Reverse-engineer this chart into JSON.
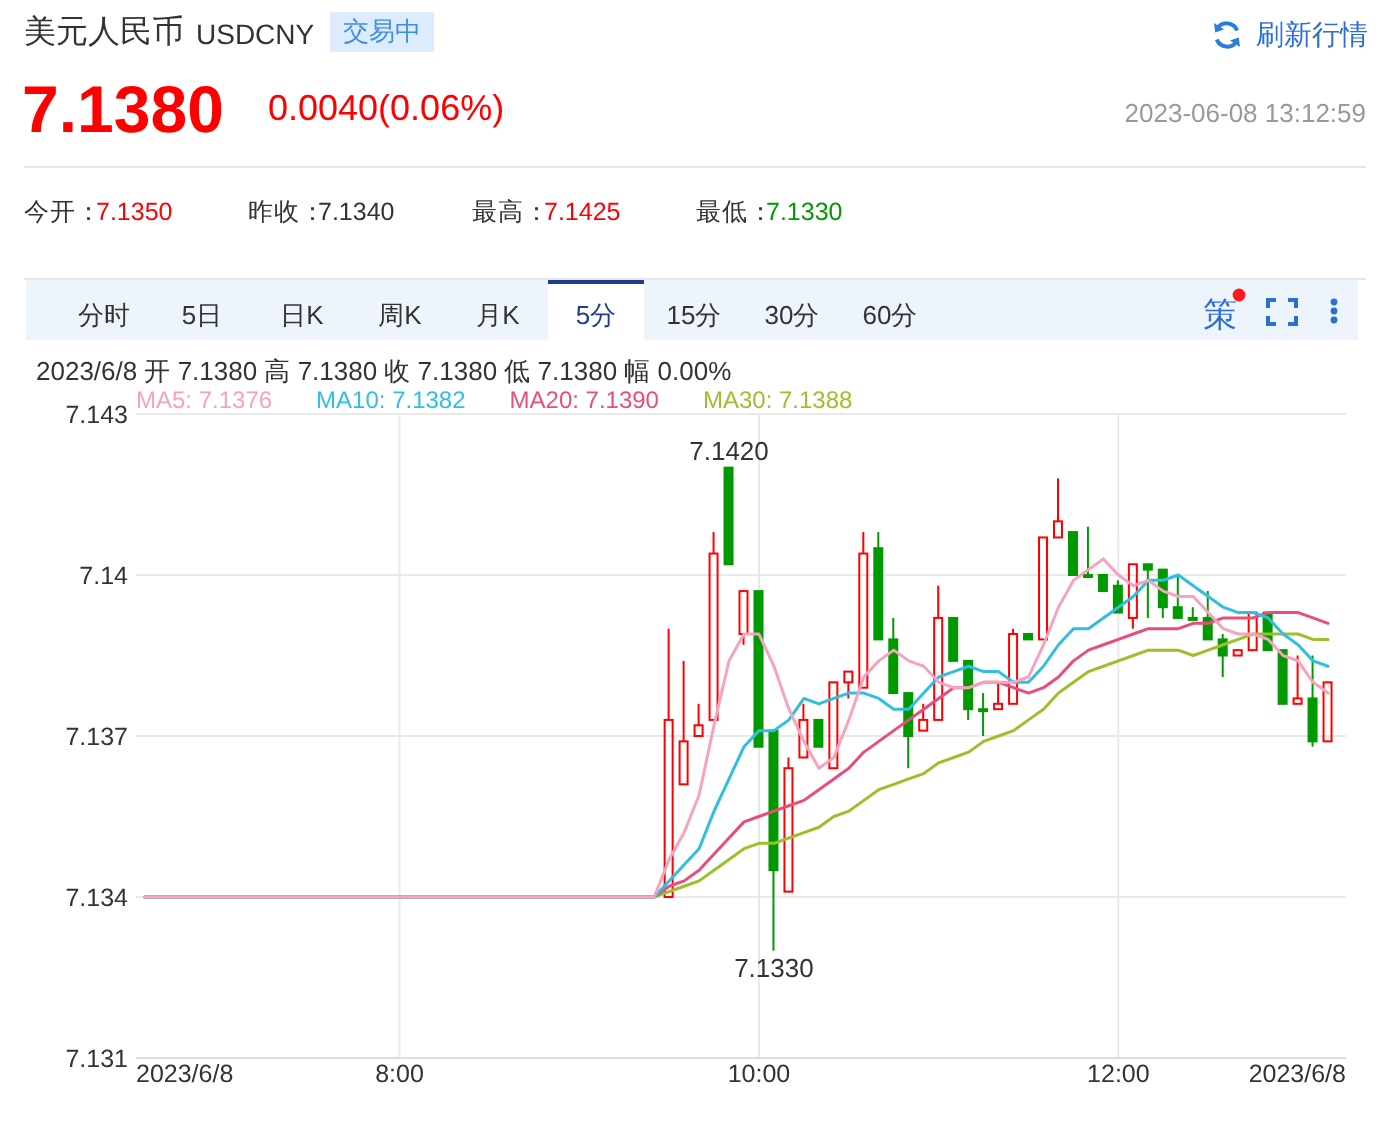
{
  "chart_data": {
    "type": "candlestick",
    "title": "美元人民币",
    "subtitle": "USDCNY",
    "x": [
      "2023-06-08T09:30",
      "2023-06-08T09:35",
      "2023-06-08T09:40",
      "2023-06-08T09:45",
      "2023-06-08T09:50",
      "2023-06-08T09:55",
      "2023-06-08T10:00",
      "2023-06-08T10:05",
      "2023-06-08T10:10",
      "2023-06-08T10:15",
      "2023-06-08T10:20",
      "2023-06-08T10:25",
      "2023-06-08T10:30",
      "2023-06-08T10:35",
      "2023-06-08T10:40",
      "2023-06-08T10:45",
      "2023-06-08T10:50",
      "2023-06-08T10:55",
      "2023-06-08T11:00",
      "2023-06-08T11:05",
      "2023-06-08T11:10",
      "2023-06-08T11:15",
      "2023-06-08T11:20",
      "2023-06-08T11:25",
      "2023-06-08T11:30",
      "2023-06-08T11:35",
      "2023-06-08T11:40",
      "2023-06-08T11:45",
      "2023-06-08T11:50",
      "2023-06-08T11:55",
      "2023-06-08T12:00",
      "2023-06-08T12:05",
      "2023-06-08T12:10",
      "2023-06-08T12:15",
      "2023-06-08T12:20",
      "2023-06-08T12:25",
      "2023-06-08T12:30",
      "2023-06-08T12:35",
      "2023-06-08T12:40",
      "2023-06-08T12:45",
      "2023-06-08T12:50",
      "2023-06-08T12:55",
      "2023-06-08T13:00",
      "2023-06-08T13:05",
      "2023-06-08T13:10"
    ],
    "ohlc": [
      [
        7.134,
        7.139,
        7.134,
        7.1373
      ],
      [
        7.1361,
        7.1384,
        7.1361,
        7.1369
      ],
      [
        7.137,
        7.1376,
        7.137,
        7.1372
      ],
      [
        7.1373,
        7.1408,
        7.1373,
        7.1404
      ],
      [
        7.142,
        7.142,
        7.1402,
        7.1402
      ],
      [
        7.1389,
        7.1397,
        7.1387,
        7.1397
      ],
      [
        7.1397,
        7.1397,
        7.1368,
        7.1368
      ],
      [
        7.1371,
        7.1371,
        7.133,
        7.1345
      ],
      [
        7.1341,
        7.1366,
        7.1341,
        7.1364
      ],
      [
        7.1366,
        7.1376,
        7.1366,
        7.1373
      ],
      [
        7.1373,
        7.1373,
        7.1368,
        7.1368
      ],
      [
        7.1364,
        7.138,
        7.1364,
        7.138
      ],
      [
        7.138,
        7.1382,
        7.1377,
        7.1382
      ],
      [
        7.1379,
        7.1408,
        7.1379,
        7.1404
      ],
      [
        7.1405,
        7.1408,
        7.1388,
        7.1388
      ],
      [
        7.1388,
        7.1392,
        7.1378,
        7.1378
      ],
      [
        7.1378,
        7.1378,
        7.1364,
        7.137
      ],
      [
        7.1371,
        7.1376,
        7.1371,
        7.1373
      ],
      [
        7.1373,
        7.1398,
        7.1373,
        7.1392
      ],
      [
        7.1392,
        7.1392,
        7.1384,
        7.1384
      ],
      [
        7.1384,
        7.1384,
        7.1373,
        7.1375
      ],
      [
        7.1375,
        7.1378,
        7.137,
        7.1375
      ],
      [
        7.1375,
        7.138,
        7.1375,
        7.1376
      ],
      [
        7.1376,
        7.139,
        7.1376,
        7.1389
      ],
      [
        7.1389,
        7.1389,
        7.1388,
        7.1388
      ],
      [
        7.1388,
        7.1407,
        7.1388,
        7.1407
      ],
      [
        7.1407,
        7.1418,
        7.1407,
        7.141
      ],
      [
        7.1408,
        7.1408,
        7.14,
        7.14
      ],
      [
        7.14,
        7.1409,
        7.14,
        7.14
      ],
      [
        7.14,
        7.14,
        7.1397,
        7.1397
      ],
      [
        7.1398,
        7.1399,
        7.1393,
        7.1393
      ],
      [
        7.1392,
        7.1402,
        7.139,
        7.1402
      ],
      [
        7.1402,
        7.1402,
        7.1392,
        7.1401
      ],
      [
        7.1401,
        7.1401,
        7.1392,
        7.1394
      ],
      [
        7.1394,
        7.14,
        7.1392,
        7.1392
      ],
      [
        7.1392,
        7.1394,
        7.1392,
        7.1392
      ],
      [
        7.1392,
        7.1397,
        7.1388,
        7.1388
      ],
      [
        7.1388,
        7.1389,
        7.1381,
        7.1385
      ],
      [
        7.1385,
        7.1386,
        7.1385,
        7.1386
      ],
      [
        7.1386,
        7.1393,
        7.1386,
        7.1393
      ],
      [
        7.1393,
        7.1393,
        7.1386,
        7.1386
      ],
      [
        7.1386,
        7.1386,
        7.1376,
        7.1376
      ],
      [
        7.1376,
        7.1385,
        7.1376,
        7.1377
      ],
      [
        7.1377,
        7.1385,
        7.1368,
        7.1369
      ],
      [
        7.1369,
        7.138,
        7.1369,
        7.138
      ]
    ],
    "colors": [
      "#ff0000",
      "#ff0000",
      "#ff0000",
      "#ff0000",
      "#009a00",
      "#ff0000",
      "#009a00",
      "#009a00",
      "#ff0000",
      "#ff0000",
      "#009a00",
      "#ff0000",
      "#ff0000",
      "#ff0000",
      "#009a00",
      "#009a00",
      "#009a00",
      "#ff0000",
      "#ff0000",
      "#009a00",
      "#009a00",
      "#009a00",
      "#ff0000",
      "#ff0000",
      "#009a00",
      "#ff0000",
      "#ff0000",
      "#009a00",
      "#009a00",
      "#009a00",
      "#009a00",
      "#ff0000",
      "#009a00",
      "#009a00",
      "#009a00",
      "#009a00",
      "#009a00",
      "#009a00",
      "#ff0000",
      "#ff0000",
      "#009a00",
      "#009a00",
      "#ff0000",
      "#009a00",
      "#ff0000"
    ],
    "series": [
      {
        "name": "MA5: 7.1376",
        "type": "line",
        "color": "#f5a3bf",
        "x": [
          "2023-06-08T06:35",
          "2023-06-08T09:25",
          "2023-06-08T09:30",
          "2023-06-08T09:35",
          "2023-06-08T09:40",
          "2023-06-08T09:45",
          "2023-06-08T09:50",
          "2023-06-08T09:55",
          "2023-06-08T10:00",
          "2023-06-08T10:05",
          "2023-06-08T10:10",
          "2023-06-08T10:15",
          "2023-06-08T10:20",
          "2023-06-08T10:25",
          "2023-06-08T10:30",
          "2023-06-08T10:35",
          "2023-06-08T10:40",
          "2023-06-08T10:45",
          "2023-06-08T10:50",
          "2023-06-08T10:55",
          "2023-06-08T11:00",
          "2023-06-08T11:05",
          "2023-06-08T11:10",
          "2023-06-08T11:15",
          "2023-06-08T11:20",
          "2023-06-08T11:25",
          "2023-06-08T11:30",
          "2023-06-08T11:35",
          "2023-06-08T11:40",
          "2023-06-08T11:45",
          "2023-06-08T11:50",
          "2023-06-08T11:55",
          "2023-06-08T12:00",
          "2023-06-08T12:05",
          "2023-06-08T12:10",
          "2023-06-08T12:15",
          "2023-06-08T12:20",
          "2023-06-08T12:25",
          "2023-06-08T12:30",
          "2023-06-08T12:35",
          "2023-06-08T12:40",
          "2023-06-08T12:45",
          "2023-06-08T12:50",
          "2023-06-08T12:55",
          "2023-06-08T13:00",
          "2023-06-08T13:05",
          "2023-06-08T13:10"
        ],
        "values": [
          7.134,
          7.134,
          7.1347,
          7.1352,
          7.1359,
          7.1372,
          7.1384,
          7.1389,
          7.1389,
          7.1383,
          7.1375,
          7.1369,
          7.1364,
          7.1366,
          7.1373,
          7.1381,
          7.1384,
          7.1386,
          7.1384,
          7.1383,
          7.138,
          7.1379,
          7.1379,
          7.138,
          7.138,
          7.138,
          7.1381,
          7.1387,
          7.1394,
          7.1399,
          7.1401,
          7.1403,
          7.14,
          7.1398,
          7.1399,
          7.1397,
          7.1396,
          7.1396,
          7.1393,
          7.139,
          7.1389,
          7.1389,
          7.1388,
          7.1385,
          7.1384,
          7.138,
          7.1378
        ]
      },
      {
        "name": "MA10: 7.1382",
        "type": "line",
        "color": "#30bfe0",
        "x": [
          "2023-06-08T06:35",
          "2023-06-08T09:25",
          "2023-06-08T09:30",
          "2023-06-08T09:35",
          "2023-06-08T09:40",
          "2023-06-08T09:45",
          "2023-06-08T09:50",
          "2023-06-08T09:55",
          "2023-06-08T10:00",
          "2023-06-08T10:05",
          "2023-06-08T10:10",
          "2023-06-08T10:15",
          "2023-06-08T10:20",
          "2023-06-08T10:25",
          "2023-06-08T10:30",
          "2023-06-08T10:35",
          "2023-06-08T10:40",
          "2023-06-08T10:45",
          "2023-06-08T10:50",
          "2023-06-08T10:55",
          "2023-06-08T11:00",
          "2023-06-08T11:05",
          "2023-06-08T11:10",
          "2023-06-08T11:15",
          "2023-06-08T11:20",
          "2023-06-08T11:25",
          "2023-06-08T11:30",
          "2023-06-08T11:35",
          "2023-06-08T11:40",
          "2023-06-08T11:45",
          "2023-06-08T11:50",
          "2023-06-08T11:55",
          "2023-06-08T12:00",
          "2023-06-08T12:05",
          "2023-06-08T12:10",
          "2023-06-08T12:15",
          "2023-06-08T12:20",
          "2023-06-08T12:25",
          "2023-06-08T12:30",
          "2023-06-08T12:35",
          "2023-06-08T12:40",
          "2023-06-08T12:45",
          "2023-06-08T12:50",
          "2023-06-08T12:55",
          "2023-06-08T13:00",
          "2023-06-08T13:05",
          "2023-06-08T13:10"
        ],
        "values": [
          7.134,
          7.134,
          7.1343,
          7.1346,
          7.1349,
          7.1356,
          7.1362,
          7.1368,
          7.1371,
          7.1371,
          7.1373,
          7.1377,
          7.1376,
          7.1377,
          7.1378,
          7.1378,
          7.1377,
          7.1375,
          7.1375,
          7.1378,
          7.1381,
          7.1382,
          7.1383,
          7.1382,
          7.1382,
          7.138,
          7.138,
          7.1383,
          7.1387,
          7.139,
          7.139,
          7.1392,
          7.1394,
          7.1396,
          7.1399,
          7.1399,
          7.14,
          7.1398,
          7.1396,
          7.1394,
          7.1393,
          7.1393,
          7.1392,
          7.1389,
          7.1387,
          7.1384,
          7.1383
        ]
      },
      {
        "name": "MA20: 7.1390",
        "type": "line",
        "color": "#e94c7e",
        "x": [
          "2023-06-08T06:35",
          "2023-06-08T09:25",
          "2023-06-08T09:30",
          "2023-06-08T09:35",
          "2023-06-08T09:40",
          "2023-06-08T09:45",
          "2023-06-08T09:50",
          "2023-06-08T09:55",
          "2023-06-08T10:00",
          "2023-06-08T10:05",
          "2023-06-08T10:10",
          "2023-06-08T10:15",
          "2023-06-08T10:20",
          "2023-06-08T10:25",
          "2023-06-08T10:30",
          "2023-06-08T10:35",
          "2023-06-08T10:40",
          "2023-06-08T10:45",
          "2023-06-08T10:50",
          "2023-06-08T10:55",
          "2023-06-08T11:00",
          "2023-06-08T11:05",
          "2023-06-08T11:10",
          "2023-06-08T11:15",
          "2023-06-08T11:20",
          "2023-06-08T11:25",
          "2023-06-08T11:30",
          "2023-06-08T11:35",
          "2023-06-08T11:40",
          "2023-06-08T11:45",
          "2023-06-08T11:50",
          "2023-06-08T11:55",
          "2023-06-08T12:00",
          "2023-06-08T12:05",
          "2023-06-08T12:10",
          "2023-06-08T12:15",
          "2023-06-08T12:20",
          "2023-06-08T12:25",
          "2023-06-08T12:30",
          "2023-06-08T12:35",
          "2023-06-08T12:40",
          "2023-06-08T12:45",
          "2023-06-08T12:50",
          "2023-06-08T12:55",
          "2023-06-08T13:00",
          "2023-06-08T13:05",
          "2023-06-08T13:10"
        ],
        "values": [
          7.134,
          7.134,
          7.1342,
          7.1343,
          7.1345,
          7.1348,
          7.1351,
          7.1354,
          7.1355,
          7.1356,
          7.1357,
          7.1358,
          7.136,
          7.1362,
          7.1364,
          7.1367,
          7.1369,
          7.1371,
          7.1373,
          7.1375,
          7.1377,
          7.1379,
          7.1379,
          7.138,
          7.138,
          7.1379,
          7.1378,
          7.1379,
          7.1381,
          7.1384,
          7.1386,
          7.1387,
          7.1388,
          7.1389,
          7.139,
          7.139,
          7.139,
          7.1391,
          7.1391,
          7.1392,
          7.1392,
          7.1392,
          7.1393,
          7.1393,
          7.1393,
          7.1392,
          7.1391
        ]
      },
      {
        "name": "MA30: 7.1388",
        "type": "line",
        "color": "#9cc02c",
        "x": [
          "2023-06-08T06:35",
          "2023-06-08T09:25",
          "2023-06-08T09:30",
          "2023-06-08T09:35",
          "2023-06-08T09:40",
          "2023-06-08T09:45",
          "2023-06-08T09:50",
          "2023-06-08T09:55",
          "2023-06-08T10:00",
          "2023-06-08T10:05",
          "2023-06-08T10:10",
          "2023-06-08T10:15",
          "2023-06-08T10:20",
          "2023-06-08T10:25",
          "2023-06-08T10:30",
          "2023-06-08T10:35",
          "2023-06-08T10:40",
          "2023-06-08T10:45",
          "2023-06-08T10:50",
          "2023-06-08T10:55",
          "2023-06-08T11:00",
          "2023-06-08T11:05",
          "2023-06-08T11:10",
          "2023-06-08T11:15",
          "2023-06-08T11:20",
          "2023-06-08T11:25",
          "2023-06-08T11:30",
          "2023-06-08T11:35",
          "2023-06-08T11:40",
          "2023-06-08T11:45",
          "2023-06-08T11:50",
          "2023-06-08T11:55",
          "2023-06-08T12:00",
          "2023-06-08T12:05",
          "2023-06-08T12:10",
          "2023-06-08T12:15",
          "2023-06-08T12:20",
          "2023-06-08T12:25",
          "2023-06-08T12:30",
          "2023-06-08T12:35",
          "2023-06-08T12:40",
          "2023-06-08T12:45",
          "2023-06-08T12:50",
          "2023-06-08T12:55",
          "2023-06-08T13:00",
          "2023-06-08T13:05",
          "2023-06-08T13:10"
        ],
        "values": [
          7.134,
          7.134,
          7.1341,
          7.1342,
          7.1343,
          7.1345,
          7.1347,
          7.1349,
          7.135,
          7.135,
          7.1351,
          7.1352,
          7.1353,
          7.1355,
          7.1356,
          7.1358,
          7.136,
          7.1361,
          7.1362,
          7.1363,
          7.1365,
          7.1366,
          7.1367,
          7.1369,
          7.137,
          7.1371,
          7.1373,
          7.1375,
          7.1378,
          7.138,
          7.1382,
          7.1383,
          7.1384,
          7.1385,
          7.1386,
          7.1386,
          7.1386,
          7.1385,
          7.1386,
          7.1387,
          7.1388,
          7.1389,
          7.1389,
          7.1389,
          7.1389,
          7.1388,
          7.1388
        ]
      }
    ],
    "xlim": [
      "2023-06-08T06:32",
      "2023-06-08T13:16"
    ],
    "xticks": [
      {
        "value": "2023-06-08T06:32",
        "label": "2023/6/8"
      },
      {
        "value": "2023-06-08T08:00",
        "label": "8:00"
      },
      {
        "value": "2023-06-08T10:00",
        "label": "10:00"
      },
      {
        "value": "2023-06-08T12:00",
        "label": "12:00"
      },
      {
        "value": "2023-06-08T13:16",
        "label": "2023/6/8"
      }
    ],
    "ylim": [
      7.131,
      7.143
    ],
    "yticks": [
      7.131,
      7.134,
      7.137,
      7.14,
      7.143
    ],
    "grid": true,
    "legend": "top left",
    "annotations": [
      "交易中",
      "刷新行情",
      "7.1380",
      "0.0040(0.06%)",
      "2023-06-08 13:12:59",
      "今开：",
      "7.1350",
      "昨收：",
      "7.1340",
      "最高：",
      "7.1425",
      "最低：",
      "7.1330",
      "分时",
      "5日",
      "日K",
      "周K",
      "月K",
      "5分",
      "15分",
      "30分",
      "60分",
      "策",
      "2023/6/8 开 7.1380 高 7.1380 收 7.1380 低 7.1380 幅 0.00%",
      {
        "text": "7.1420",
        "x": "2023-06-08T09:50",
        "y": 7.142
      },
      {
        "text": "7.1330",
        "x": "2023-06-08T10:05",
        "y": 7.133
      }
    ]
  }
}
